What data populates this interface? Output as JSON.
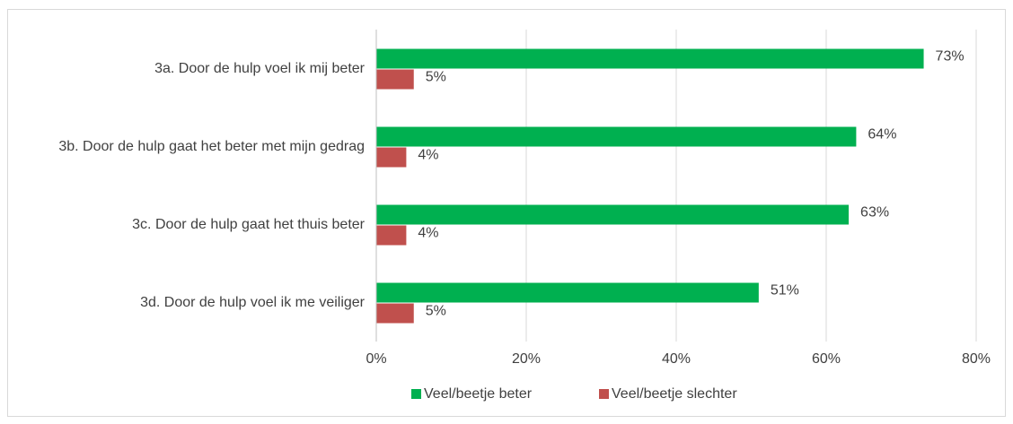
{
  "chart_data": {
    "type": "bar",
    "orientation": "horizontal",
    "categories": [
      "3a. Door de hulp voel ik mij beter",
      "3b.  Door de hulp gaat het beter met mijn gedrag",
      "3c. Door de hulp gaat het thuis beter",
      "3d. Door de hulp voel ik me veiliger"
    ],
    "series": [
      {
        "name": "Veel/beetje beter",
        "color": "#00b050",
        "values": [
          73,
          64,
          63,
          51
        ],
        "value_labels": [
          "73%",
          "64%",
          "63%",
          "51%"
        ]
      },
      {
        "name": "Veel/beetje slechter",
        "color": "#c0504d",
        "values": [
          5,
          4,
          4,
          5
        ],
        "value_labels": [
          "5%",
          "4%",
          "4%",
          "5%"
        ]
      }
    ],
    "xlim": [
      0,
      80
    ],
    "xticks": [
      {
        "value": 0,
        "label": "0%"
      },
      {
        "value": 20,
        "label": "20%"
      },
      {
        "value": 40,
        "label": "40%"
      },
      {
        "value": 60,
        "label": "60%"
      },
      {
        "value": 80,
        "label": "80%"
      }
    ],
    "grid": true,
    "legend": "bottom"
  }
}
